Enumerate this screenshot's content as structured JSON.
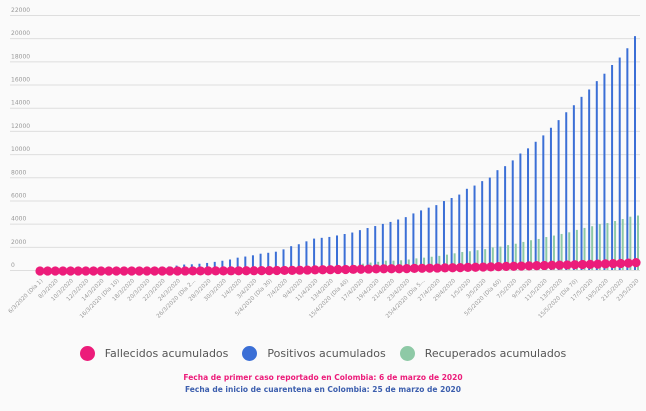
{
  "chart_data": {
    "type": "bar",
    "title": "",
    "xlabel": "",
    "ylabel": "",
    "ylim": [
      0,
      22000
    ],
    "yticks": [
      0,
      2000,
      4000,
      6000,
      8000,
      10000,
      12000,
      14000,
      16000,
      18000,
      20000,
      22000
    ],
    "grid": true,
    "legend_position": "bottom",
    "x_tick_labels": [
      "6/3/2020 (Día 1)",
      "8/3/2020",
      "10/3/2020",
      "12/3/2020",
      "14/3/2020",
      "16/3/2020 (Día 10)",
      "18/3/2020",
      "20/3/2020",
      "22/3/2020",
      "24/3/2020",
      "26/3/2020 (Día 2...",
      "28/3/2020",
      "30/3/2020",
      "1/4/2020",
      "3/4/2020",
      "5/4/2020 (Día 30)",
      "7/4/2020",
      "9/4/2020",
      "11/4/2020",
      "13/4/2020",
      "15/4/2020 (Día 40)",
      "17/4/2020",
      "19/4/2020",
      "21/4/2020",
      "23/4/2020",
      "25/4/2020 (Día 5...",
      "27/4/2020",
      "29/4/2020",
      "1/5/2020",
      "3/5/2020",
      "5/5/2020 (Día 60)",
      "7/5/2020",
      "9/5/2020",
      "11/5/2020",
      "13/5/2020",
      "15/5/2020 (Día 70)",
      "17/5/2020",
      "19/5/2020",
      "21/5/2020",
      "23/5/2020"
    ],
    "x_start": "6/3/2020",
    "x_end": "23/5/2020",
    "series": [
      {
        "name": "Fallecidos acumulados",
        "color": "#ec1c7a",
        "mark": "dot",
        "values": [
          0,
          0,
          0,
          0,
          0,
          0,
          0,
          0,
          0,
          0,
          0,
          0,
          0,
          0,
          0,
          1,
          1,
          2,
          3,
          4,
          6,
          6,
          10,
          10,
          12,
          16,
          17,
          19,
          25,
          32,
          35,
          46,
          50,
          55,
          69,
          80,
          100,
          109,
          112,
          131,
          131,
          144,
          153,
          166,
          179,
          189,
          196,
          196,
          206,
          225,
          233,
          244,
          253,
          269,
          278,
          293,
          314,
          324,
          340,
          358,
          378,
          397,
          407,
          428,
          445,
          463,
          479,
          493,
          509,
          525,
          546,
          562,
          574,
          592,
          613,
          640,
          652,
          682,
          727
        ]
      },
      {
        "name": "Positivos acumulados",
        "color": "#3b6fd6",
        "mark": "bar",
        "values": [
          1,
          1,
          1,
          3,
          3,
          9,
          9,
          16,
          24,
          45,
          57,
          75,
          102,
          128,
          196,
          231,
          277,
          306,
          378,
          470,
          491,
          539,
          608,
          702,
          798,
          906,
          1065,
          1161,
          1267,
          1406,
          1485,
          1579,
          1780,
          2054,
          2223,
          2473,
          2709,
          2776,
          2852,
          2979,
          3105,
          3233,
          3439,
          3621,
          3792,
          3977,
          4149,
          4356,
          4561,
          4881,
          5142,
          5379,
          5597,
          5949,
          6211,
          6507,
          7006,
          7285,
          7668,
          7973,
          8613,
          8959,
          9456,
          10051,
          10495,
          11063,
          11613,
          12272,
          12930,
          13610,
          14216,
          14939,
          15574,
          16295,
          16935,
          17687,
          18330,
          19131,
          20177
        ]
      },
      {
        "name": "Recuperados acumulados",
        "color": "#8ec9a6",
        "mark": "bar",
        "values": [
          0,
          0,
          0,
          0,
          0,
          0,
          0,
          0,
          0,
          0,
          0,
          0,
          0,
          0,
          0,
          0,
          0,
          2,
          6,
          8,
          8,
          10,
          10,
          10,
          15,
          17,
          17,
          26,
          55,
          76,
          88,
          94,
          100,
          123,
          132,
          197,
          214,
          239,
          270,
          319,
          354,
          415,
          543,
          640,
          708,
          803,
          803,
          839,
          907,
          1003,
          1065,
          1142,
          1220,
          1325,
          1439,
          1551,
          1618,
          1708,
          1800,
          1945,
          2021,
          2148,
          2267,
          2424,
          2569,
          2678,
          2846,
          2971,
          3110,
          3251,
          3460,
          3630,
          3777,
          3960,
          4050,
          4225,
          4400,
          4600,
          4700
        ]
      }
    ]
  },
  "notes": {
    "first_case": "Fecha de primer caso reportado en Colombia: 6 de marzo de 2020",
    "first_case_color": "#ec1c7a",
    "quarantine": "Fecha de inicio de cuarentena en Colombia: 25 de marzo de 2020",
    "quarantine_color": "#3d5fae"
  }
}
